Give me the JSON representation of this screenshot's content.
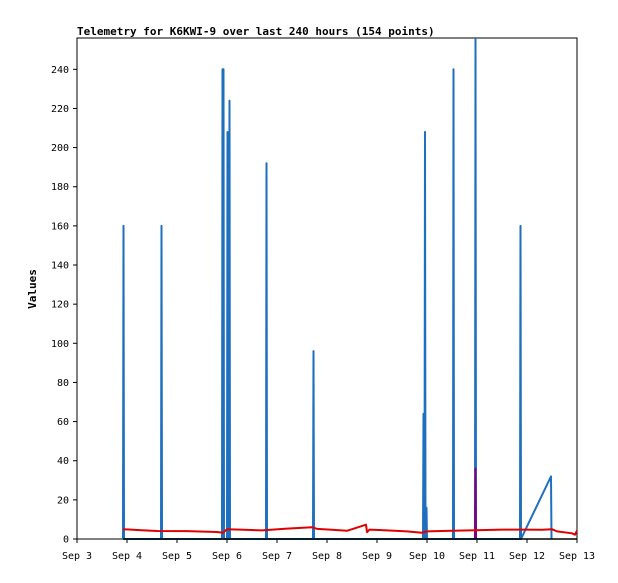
{
  "chart_data": {
    "type": "line",
    "title": "Telemetry for K6KWI-9 over last 240 hours (154 points)",
    "xlabel": "",
    "ylabel": "Values",
    "ylim": [
      0,
      256
    ],
    "y_ticks": [
      0,
      20,
      40,
      60,
      80,
      100,
      120,
      140,
      160,
      180,
      200,
      220,
      240
    ],
    "x_ticks": [
      {
        "day": 0,
        "label": "Sep 3"
      },
      {
        "day": 1,
        "label": "Sep 4"
      },
      {
        "day": 2,
        "label": "Sep 5"
      },
      {
        "day": 3,
        "label": "Sep 6"
      },
      {
        "day": 4,
        "label": "Sep 7"
      },
      {
        "day": 5,
        "label": "Sep 8"
      },
      {
        "day": 6,
        "label": "Sep 9"
      },
      {
        "day": 7,
        "label": "Sep 10"
      },
      {
        "day": 8,
        "label": "Sep 11"
      },
      {
        "day": 9,
        "label": "Sep 12"
      },
      {
        "day": 10,
        "label": "Sep 13"
      }
    ],
    "xlim": [
      0,
      10
    ],
    "grid": false,
    "legend": "none",
    "series": [
      {
        "color": "#1f6fbf",
        "points": [
          [
            0.92,
            0
          ],
          [
            0.93,
            160
          ],
          [
            0.94,
            0
          ],
          [
            1.68,
            0
          ],
          [
            1.69,
            160
          ],
          [
            1.7,
            0
          ],
          [
            2.9,
            0
          ],
          [
            2.91,
            240
          ],
          [
            2.93,
            240
          ],
          [
            2.94,
            0
          ],
          [
            3.0,
            0
          ],
          [
            3.01,
            208
          ],
          [
            3.02,
            0
          ],
          [
            3.04,
            0
          ],
          [
            3.05,
            224
          ],
          [
            3.06,
            0
          ],
          [
            3.78,
            0
          ],
          [
            3.79,
            192
          ],
          [
            3.8,
            0
          ],
          [
            4.72,
            0
          ],
          [
            4.73,
            96
          ],
          [
            4.74,
            0
          ],
          [
            6.92,
            0
          ],
          [
            6.93,
            64
          ],
          [
            6.94,
            0
          ],
          [
            6.95,
            0
          ],
          [
            6.96,
            208
          ],
          [
            6.97,
            0
          ],
          [
            6.98,
            0
          ],
          [
            6.99,
            16
          ],
          [
            7.0,
            0
          ],
          [
            7.52,
            0
          ],
          [
            7.53,
            240
          ],
          [
            7.54,
            0
          ],
          [
            7.96,
            0
          ],
          [
            7.97,
            256
          ],
          [
            7.98,
            0
          ],
          [
            8.86,
            0
          ],
          [
            8.87,
            160
          ],
          [
            8.88,
            0
          ],
          [
            9.48,
            32
          ],
          [
            9.49,
            0
          ]
        ]
      },
      {
        "color": "#800080",
        "points": [
          [
            7.96,
            0
          ],
          [
            7.97,
            36
          ],
          [
            7.98,
            0
          ]
        ]
      },
      {
        "color": "#e00000",
        "points": [
          [
            0.92,
            5
          ],
          [
            1.2,
            4.6
          ],
          [
            1.6,
            4.1
          ],
          [
            2.2,
            4.0
          ],
          [
            2.8,
            3.6
          ],
          [
            2.92,
            3.2
          ],
          [
            3.0,
            5
          ],
          [
            3.5,
            4.6
          ],
          [
            3.7,
            4.4
          ],
          [
            4.2,
            5.3
          ],
          [
            4.7,
            6.0
          ],
          [
            4.8,
            5.2
          ],
          [
            5.1,
            4.7
          ],
          [
            5.4,
            4.2
          ],
          [
            5.78,
            7.3
          ],
          [
            5.8,
            3.5
          ],
          [
            5.85,
            4.8
          ],
          [
            6.2,
            4.4
          ],
          [
            6.6,
            3.9
          ],
          [
            6.9,
            3.2
          ],
          [
            7.0,
            3.9
          ],
          [
            7.5,
            4.2
          ],
          [
            7.97,
            4.5
          ],
          [
            8.5,
            4.8
          ],
          [
            8.9,
            4.8
          ],
          [
            9.3,
            4.7
          ],
          [
            9.5,
            5.0
          ],
          [
            9.6,
            3.9
          ],
          [
            9.9,
            2.9
          ],
          [
            9.96,
            2.2
          ],
          [
            10.0,
            4.3
          ]
        ]
      },
      {
        "color": "#000000",
        "points": [
          [
            0.92,
            0
          ],
          [
            2.9,
            0
          ],
          [
            4.0,
            0
          ],
          [
            6.0,
            0
          ],
          [
            8.0,
            0
          ],
          [
            9.2,
            0
          ],
          [
            10.0,
            0
          ]
        ]
      }
    ]
  }
}
